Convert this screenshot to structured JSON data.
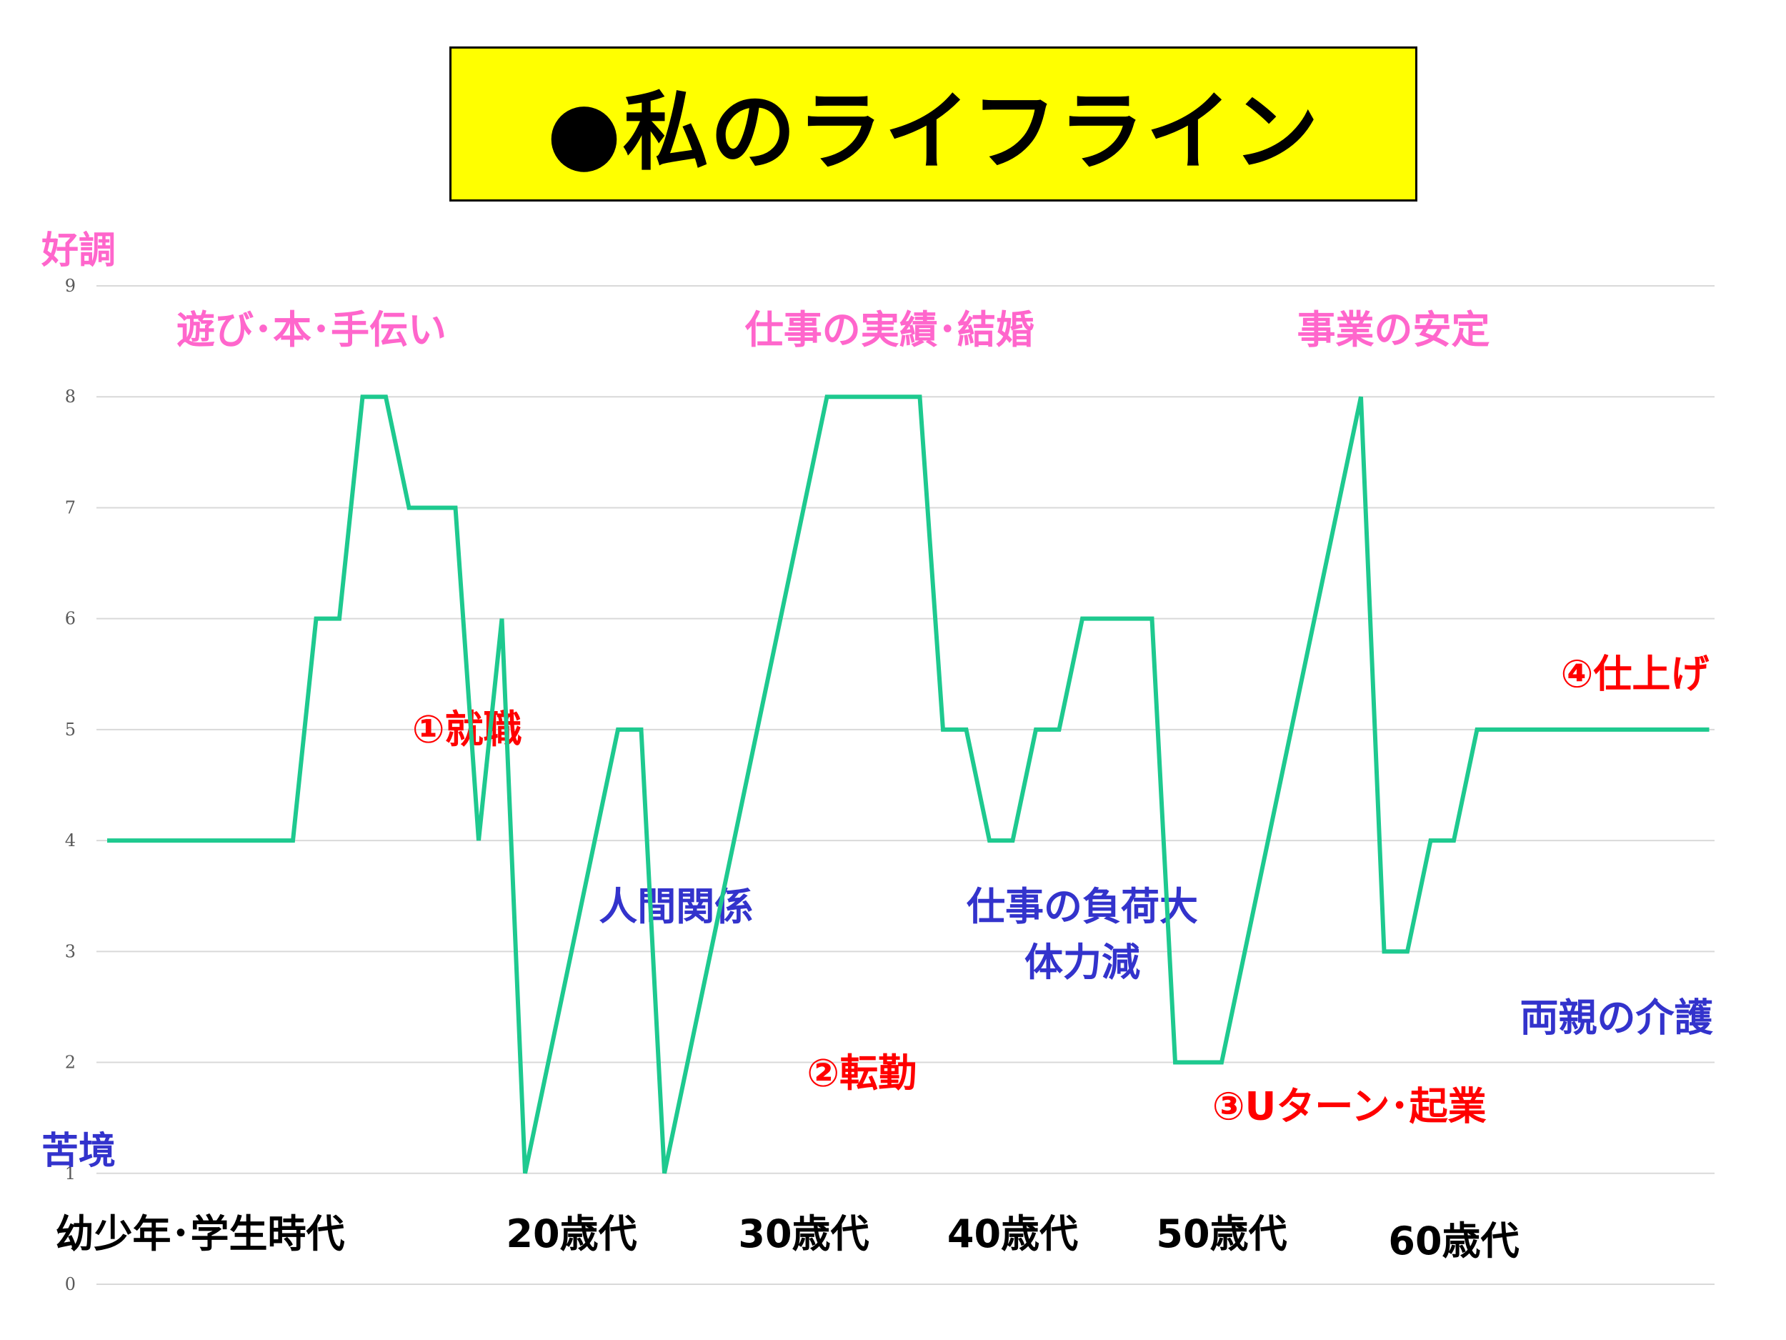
{
  "title": "●私のライフライン",
  "colors": {
    "line": "#1ec98f",
    "positive": "#ff66cc",
    "negative": "#3333cc",
    "event": "#ff0000",
    "title_bg": "#ffff00"
  },
  "axis_ends": {
    "top": "好調",
    "bottom": "苦境"
  },
  "chart_data": {
    "type": "line",
    "ylim": [
      0,
      9
    ],
    "yticks": [
      "0",
      "1",
      "2",
      "3",
      "4",
      "5",
      "6",
      "7",
      "8",
      "9"
    ],
    "grid": true,
    "legend": "none",
    "series": [
      {
        "x": [
          0,
          1,
          2,
          3,
          4,
          5,
          6,
          7,
          8,
          9,
          10,
          11,
          12,
          13,
          14,
          15,
          16,
          17,
          18,
          19,
          20,
          21,
          22,
          23,
          24,
          25,
          26,
          27,
          28,
          29,
          30,
          31,
          32,
          33,
          34,
          35,
          36,
          37,
          38,
          39,
          40,
          41,
          42,
          43,
          44,
          45,
          46,
          47,
          48,
          49,
          50,
          51,
          52,
          53,
          54,
          55,
          56,
          57,
          58,
          59,
          60,
          61,
          62,
          63,
          64,
          65,
          66,
          67,
          68,
          69
        ],
        "y": [
          4,
          4,
          4,
          4,
          4,
          4,
          4,
          4,
          4,
          6,
          6,
          8,
          8,
          7,
          7,
          7,
          4,
          6,
          1,
          2,
          3,
          4,
          5,
          5,
          1,
          2,
          3,
          4,
          5,
          6,
          7,
          8,
          8,
          8,
          8,
          8,
          5,
          5,
          4,
          4,
          5,
          5,
          6,
          6,
          6,
          6,
          2,
          2,
          2,
          3,
          4,
          5,
          6,
          7,
          8,
          3,
          3,
          4,
          4,
          5,
          5,
          5,
          5,
          5,
          5,
          5,
          5,
          5,
          5,
          5
        ]
      }
    ],
    "categories": [
      {
        "label": "幼少年･学生時代",
        "x": 4
      },
      {
        "label": "20歳代",
        "x": 20
      },
      {
        "label": "30歳代",
        "x": 30
      },
      {
        "label": "40歳代",
        "x": 39
      },
      {
        "label": "50歳代",
        "x": 48
      },
      {
        "label": "60歳代",
        "x": 58
      }
    ],
    "annotations": [
      {
        "text": "遊び･本･手伝い",
        "kind": "positive",
        "x": 8.8,
        "y": 8.6
      },
      {
        "text": "仕事の実績･結婚",
        "kind": "positive",
        "x": 33.7,
        "y": 8.6
      },
      {
        "text": "事業の安定",
        "kind": "positive",
        "x": 55.4,
        "y": 8.6
      },
      {
        "text": "①就職",
        "kind": "event",
        "x": 15.5,
        "y": 5.0
      },
      {
        "text": "②転勤",
        "kind": "event",
        "x": 32.5,
        "y": 1.9
      },
      {
        "text": "③Uターン･起業",
        "kind": "event",
        "x": 53.5,
        "y": 1.6
      },
      {
        "text": "④仕上げ",
        "kind": "event",
        "x": 65.8,
        "y": 5.5
      },
      {
        "text": "人間関係",
        "kind": "negative",
        "x": 24.5,
        "y": 3.4
      },
      {
        "text": "仕事の負荷大",
        "kind": "negative",
        "x": 42,
        "y": 3.4
      },
      {
        "text": "体力減",
        "kind": "negative",
        "x": 42,
        "y": 2.9
      },
      {
        "text": "両親の介護",
        "kind": "negative",
        "x": 65,
        "y": 2.4
      }
    ]
  }
}
